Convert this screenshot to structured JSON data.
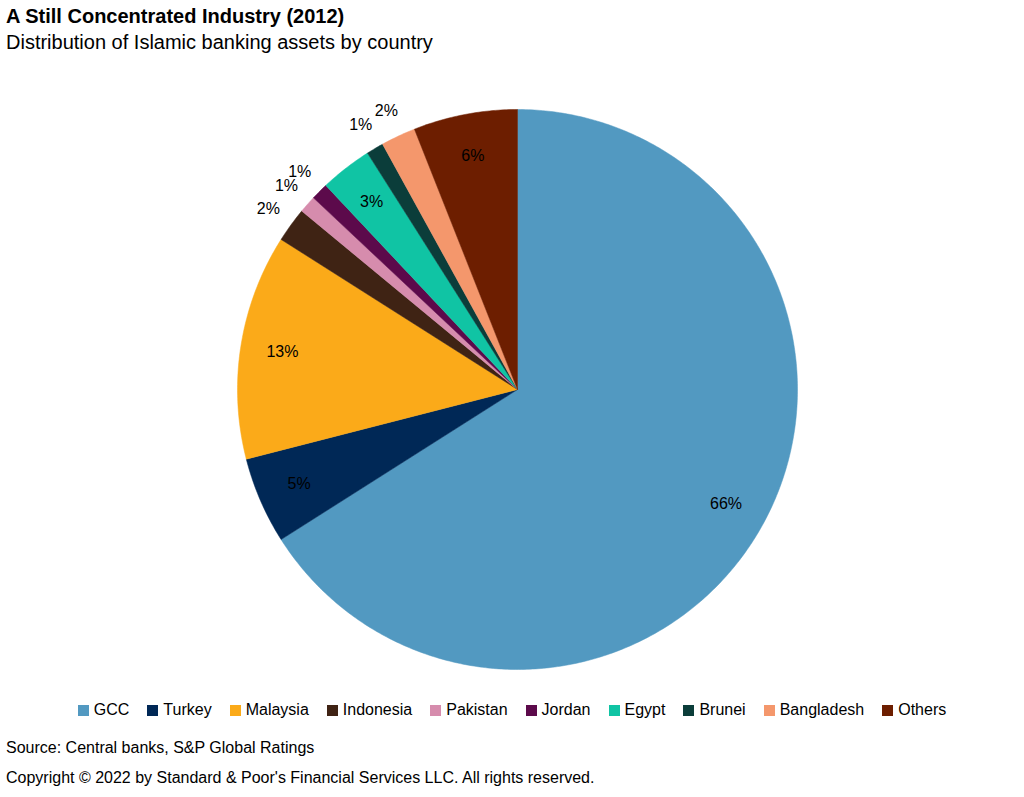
{
  "chart_data": {
    "type": "pie",
    "title": "A Still Concentrated Industry (2012)",
    "subtitle": "Distribution of Islamic banking assets by country",
    "categories": [
      "GCC",
      "Turkey",
      "Malaysia",
      "Indonesia",
      "Pakistan",
      "Jordan",
      "Egypt",
      "Brunei",
      "Bangladesh",
      "Others"
    ],
    "values": [
      66,
      5,
      13,
      2,
      1,
      1,
      3,
      1,
      2,
      6
    ],
    "value_labels": [
      "66%",
      "5%",
      "13%",
      "2%",
      "1%",
      "1%",
      "3%",
      "1%",
      "2%",
      "6%"
    ],
    "colors": [
      "#5299c1",
      "#002856",
      "#fbaa19",
      "#3f2314",
      "#d68cad",
      "#5c0a4b",
      "#10c4a4",
      "#0b3d3a",
      "#f4976c",
      "#6d1e00"
    ],
    "data_labels": true,
    "legend": "bottom",
    "source": "Source: Central banks, S&P Global Ratings",
    "copyright": "Copyright © 2022 by Standard & Poor's Financial Services LLC. All rights reserved."
  }
}
